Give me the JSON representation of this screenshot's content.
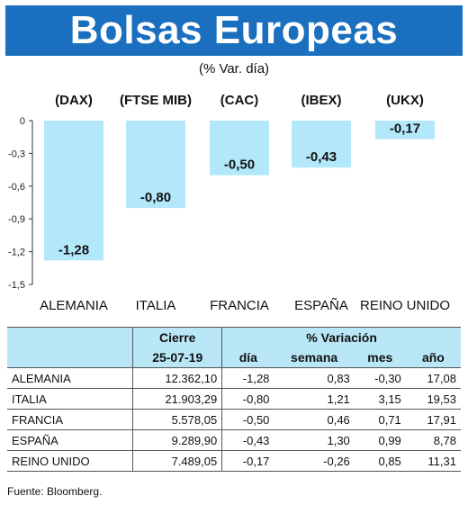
{
  "header": {
    "title": "Bolsas Europeas",
    "subtitle": "(% Var. día)"
  },
  "chart_data": {
    "type": "bar",
    "categories": [
      "ALEMANIA",
      "ITALIA",
      "FRANCIA",
      "ESPAÑA",
      "REINO UNIDO"
    ],
    "index_labels": [
      "(DAX)",
      "(FTSE MIB)",
      "(CAC)",
      "(IBEX)",
      "(UKX)"
    ],
    "values": [
      -1.28,
      -0.8,
      -0.5,
      -0.43,
      -0.17
    ],
    "value_labels": [
      "-1,28",
      "-0,80",
      "-0,50",
      "-0,43",
      "-0,17"
    ],
    "y_ticks": [
      0,
      -0.3,
      -0.6,
      -0.9,
      -1.2,
      -1.5
    ],
    "y_tick_labels": [
      "0",
      "-0,3",
      "-0,6",
      "-0,9",
      "-1,2",
      "-1,5"
    ],
    "ylim": [
      -1.5,
      0
    ],
    "bar_color": "#b3e8fb",
    "grid": false
  },
  "table": {
    "group_headers": {
      "cierre": "Cierre",
      "variacion": "% Variación"
    },
    "columns": {
      "date": "25-07-19",
      "dia": "día",
      "semana": "semana",
      "mes": "mes",
      "ano": "año"
    },
    "rows": [
      {
        "name": "ALEMANIA",
        "cierre": "12.362,10",
        "dia": "-1,28",
        "semana": "0,83",
        "mes": "-0,30",
        "ano": "17,08"
      },
      {
        "name": "ITALIA",
        "cierre": "21.903,29",
        "dia": "-0,80",
        "semana": "1,21",
        "mes": "3,15",
        "ano": "19,53"
      },
      {
        "name": "FRANCIA",
        "cierre": "5.578,05",
        "dia": "-0,50",
        "semana": "0,46",
        "mes": "0,71",
        "ano": "17,91"
      },
      {
        "name": "ESPAÑA",
        "cierre": "9.289,90",
        "dia": "-0,43",
        "semana": "1,30",
        "mes": "0,99",
        "ano": "8,78"
      },
      {
        "name": "REINO UNIDO",
        "cierre": "7.489,05",
        "dia": "-0,17",
        "semana": "-0,26",
        "mes": "0,85",
        "ano": "11,31"
      }
    ]
  },
  "source": "Fuente: Bloomberg.",
  "colors": {
    "title_bg": "#1a6fbf",
    "header_bg": "#b9e7f7"
  }
}
